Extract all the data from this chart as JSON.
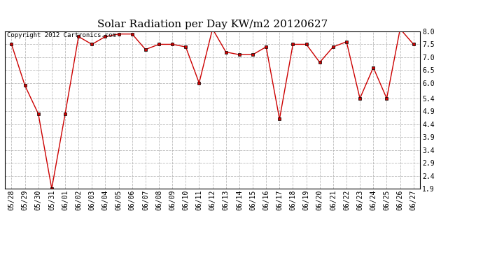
{
  "title": "Solar Radiation per Day KW/m2 20120627",
  "copyright_text": "Copyright 2012 Cartronics.com",
  "dates": [
    "05/28",
    "05/29",
    "05/30",
    "05/31",
    "06/01",
    "06/02",
    "06/03",
    "06/04",
    "06/05",
    "06/06",
    "06/07",
    "06/08",
    "06/09",
    "06/10",
    "06/11",
    "06/12",
    "06/13",
    "06/14",
    "06/15",
    "06/16",
    "06/17",
    "06/18",
    "06/19",
    "06/20",
    "06/21",
    "06/22",
    "06/23",
    "06/24",
    "06/25",
    "06/26",
    "06/27"
  ],
  "values": [
    7.5,
    5.9,
    4.8,
    1.9,
    4.8,
    7.8,
    7.5,
    7.8,
    7.9,
    7.9,
    7.3,
    7.5,
    7.5,
    7.4,
    6.0,
    8.1,
    7.2,
    7.1,
    7.1,
    7.4,
    4.6,
    7.5,
    7.5,
    6.8,
    7.4,
    7.6,
    5.4,
    6.6,
    5.4,
    8.1,
    7.5
  ],
  "yticks": [
    1.9,
    2.4,
    2.9,
    3.4,
    3.9,
    4.4,
    4.9,
    5.4,
    6.0,
    6.5,
    7.0,
    7.5,
    8.0
  ],
  "ymin": 1.9,
  "ymax": 8.0,
  "line_color": "#cc0000",
  "marker_color": "#000000",
  "bg_color": "#ffffff",
  "plot_bg_color": "#ffffff",
  "grid_color": "#aaaaaa",
  "title_fontsize": 11,
  "copyright_fontsize": 6.5,
  "tick_fontsize": 7
}
